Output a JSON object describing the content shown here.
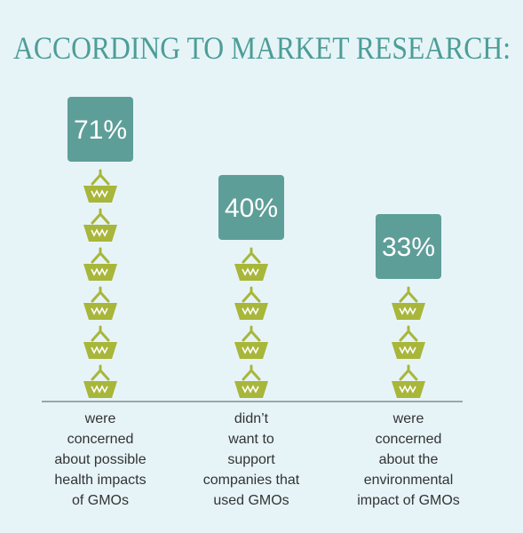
{
  "chart_data": {
    "type": "pictograph",
    "title": "ACCORDING TO MARKET RESEARCH:",
    "categories": [
      "were\nconcerned\nabout possible\nhealth impacts\nof GMOs",
      "didn’t\nwant to\nsupport\ncompanies that\nused GMOs",
      "were\nconcerned\nabout the\nenvironmental\nimpact of GMOs"
    ],
    "values": [
      71,
      40,
      33
    ],
    "value_labels": [
      "71%",
      "40%",
      "33%"
    ],
    "color": "#a8b63a",
    "label_color": "#5e9e98",
    "ylim": [
      0,
      100
    ]
  }
}
